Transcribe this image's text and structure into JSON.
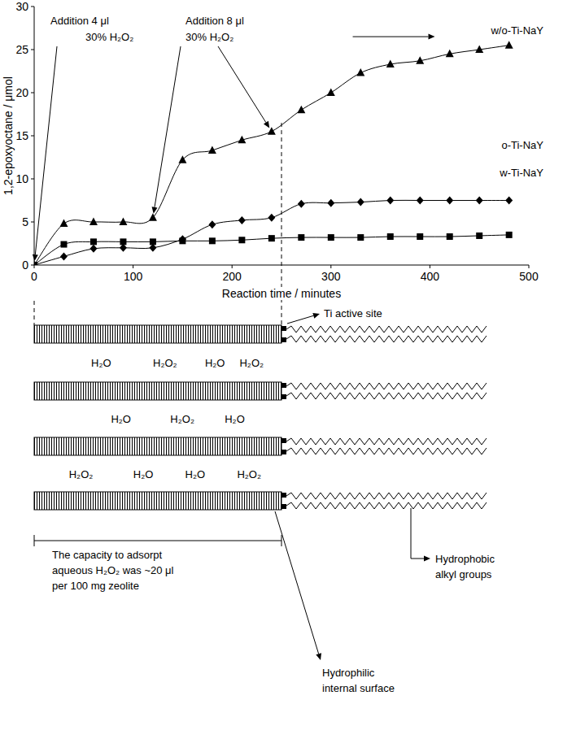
{
  "chart_data": {
    "type": "line",
    "x_label": "Reaction time / minutes",
    "y_label": "1,2-epoxyoctane / μmol",
    "x": [
      0,
      30,
      60,
      90,
      120,
      150,
      180,
      210,
      240,
      270,
      300,
      330,
      360,
      390,
      420,
      450,
      480
    ],
    "xlim": [
      0,
      500
    ],
    "xticks": [
      0,
      100,
      200,
      300,
      400,
      500
    ],
    "ylim": [
      0,
      30
    ],
    "yticks": [
      0,
      5,
      10,
      15,
      20,
      25,
      30
    ],
    "line_style": "smooth",
    "series": [
      {
        "name": "w/o-Ti-NaY",
        "color": "#000000",
        "marker": "triangle",
        "values": [
          0,
          4.8,
          5.0,
          5.0,
          5.5,
          12.2,
          13.3,
          14.5,
          15.5,
          18.0,
          20.0,
          22.3,
          23.3,
          23.7,
          24.5,
          25.0,
          25.5
        ]
      },
      {
        "name": "o-Ti-NaY",
        "color": "#000000",
        "marker": "diamond",
        "values": [
          0,
          1.0,
          1.9,
          2.0,
          2.0,
          3.0,
          4.7,
          5.2,
          5.5,
          7.1,
          7.2,
          7.3,
          7.5,
          7.5,
          7.5,
          7.5,
          7.5
        ]
      },
      {
        "name": "w-Ti-NaY",
        "color": "#000000",
        "marker": "square",
        "values": [
          0,
          2.4,
          2.7,
          2.7,
          2.7,
          2.8,
          2.8,
          2.9,
          3.1,
          3.2,
          3.2,
          3.2,
          3.3,
          3.3,
          3.3,
          3.4,
          3.5
        ]
      }
    ],
    "annotations": [
      {
        "text": [
          "Addition 4 μl",
          "30% H₂O₂"
        ],
        "targets": [
          [
            0,
            0
          ]
        ]
      },
      {
        "text": [
          "Addition 8 μl",
          "30% H₂O₂"
        ],
        "targets": [
          [
            120,
            5.5
          ],
          [
            240,
            15.5
          ]
        ]
      }
    ],
    "arrows": [
      {
        "from": [
          322,
          26.5
        ],
        "to": [
          405,
          26.5
        ]
      }
    ],
    "vlines": [
      0,
      250
    ]
  },
  "diagram": {
    "ti_label": "Ti active site",
    "molecules": [
      [
        "H₂O",
        "H₂O₂",
        "H₂O",
        "H₂O₂"
      ],
      [
        "H₂O",
        "H₂O₂",
        "H₂O"
      ],
      [
        "H₂O₂",
        "H₂O",
        "H₂O",
        "H₂O₂"
      ]
    ],
    "capacity": [
      "The capacity to adsorpt",
      "aqueous H₂O₂ was ~20 μl",
      "per 100 mg zeolite"
    ],
    "hydrophobic": [
      "Hydrophobic",
      "alkyl groups"
    ],
    "hydrophilic": [
      "Hydrophilic",
      "internal surface"
    ]
  }
}
